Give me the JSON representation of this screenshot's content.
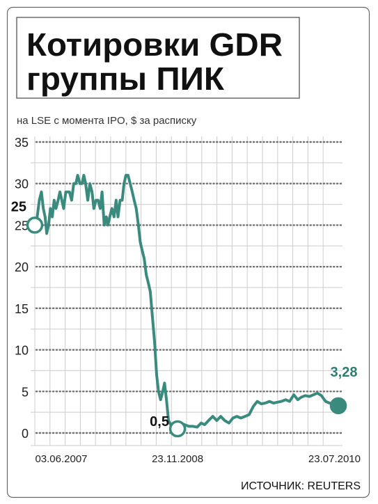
{
  "title_line1": "Котировки GDR",
  "title_line2": "группы ПИК",
  "subtitle": "на LSE с момента IPO, $ за расписку",
  "source": "ИСТОЧНИК: REUTERS",
  "colors": {
    "line": "#3a8a7e",
    "grid_minor": "#cccccc",
    "grid_major": "#6f6f6f",
    "end_label": "#2e7d72",
    "frame": "#666666"
  },
  "chart_data": {
    "type": "line",
    "title": "Котировки GDR группы ПИК",
    "subtitle": "на LSE с момента IPO, $ за расписку",
    "xlabel": "",
    "ylabel": "",
    "ylim": [
      0,
      35
    ],
    "yticks": [
      "0",
      "5",
      "10",
      "15",
      "20",
      "25",
      "30",
      "35"
    ],
    "xticks": [
      "03.06.2007",
      "23.11.2008",
      "23.07.2010"
    ],
    "grid": true,
    "annotations": [
      {
        "label": "25",
        "x": "03.06.2007",
        "y": 25
      },
      {
        "label": "0,5",
        "x": "23.11.2008",
        "y": 0.5
      },
      {
        "label": "3,28",
        "x": "23.07.2010",
        "y": 3.28
      }
    ],
    "series": [
      {
        "x": [
          "2007-06-03",
          "2007-06-12",
          "2007-06-20",
          "2007-06-28",
          "2007-07-05",
          "2007-07-12",
          "2007-07-18",
          "2007-07-25",
          "2007-08-01",
          "2007-08-08",
          "2007-08-15",
          "2007-08-22",
          "2007-08-30",
          "2007-09-06",
          "2007-09-13",
          "2007-09-20",
          "2007-09-28",
          "2007-10-05",
          "2007-10-12",
          "2007-10-20",
          "2007-10-28",
          "2007-11-05",
          "2007-11-12",
          "2007-11-20",
          "2007-11-28",
          "2007-12-05",
          "2007-12-12",
          "2007-12-20",
          "2007-12-28",
          "2008-01-05",
          "2008-01-12",
          "2008-01-20",
          "2008-01-28",
          "2008-02-05",
          "2008-02-12",
          "2008-02-20",
          "2008-02-28",
          "2008-03-05",
          "2008-03-12",
          "2008-03-20",
          "2008-03-28",
          "2008-04-05",
          "2008-04-12",
          "2008-04-20",
          "2008-04-28",
          "2008-05-05",
          "2008-05-12",
          "2008-05-20",
          "2008-05-28",
          "2008-06-05",
          "2008-06-12",
          "2008-06-20",
          "2008-06-28",
          "2008-07-05",
          "2008-07-12",
          "2008-07-20",
          "2008-07-28",
          "2008-08-05",
          "2008-08-12",
          "2008-08-20",
          "2008-08-28",
          "2008-09-05",
          "2008-09-12",
          "2008-09-20",
          "2008-09-28",
          "2008-10-05",
          "2008-10-12",
          "2008-10-20",
          "2008-10-28",
          "2008-11-05",
          "2008-11-12",
          "2008-11-23",
          "2008-12-05",
          "2008-12-20",
          "2009-01-05",
          "2009-01-20",
          "2009-02-05",
          "2009-02-20",
          "2009-03-05",
          "2009-03-20",
          "2009-04-05",
          "2009-04-20",
          "2009-05-05",
          "2009-05-20",
          "2009-06-05",
          "2009-06-20",
          "2009-07-05",
          "2009-07-20",
          "2009-08-05",
          "2009-08-20",
          "2009-09-05",
          "2009-09-20",
          "2009-10-05",
          "2009-10-20",
          "2009-11-05",
          "2009-11-20",
          "2009-12-05",
          "2009-12-20",
          "2010-01-05",
          "2010-01-20",
          "2010-02-05",
          "2010-02-20",
          "2010-03-05",
          "2010-03-20",
          "2010-04-05",
          "2010-04-20",
          "2010-05-05",
          "2010-05-20",
          "2010-06-05",
          "2010-06-20",
          "2010-07-05",
          "2010-07-23"
        ],
        "y": [
          25,
          26,
          28,
          29,
          27,
          26,
          24,
          25,
          27,
          26,
          28,
          27,
          28,
          29,
          28,
          27,
          29,
          29,
          29,
          28,
          30,
          30,
          31,
          30,
          30,
          31,
          30,
          28,
          30,
          29,
          27,
          28,
          28,
          27,
          29,
          25,
          26,
          25,
          26,
          27,
          26,
          28,
          26,
          28,
          28,
          30,
          31,
          31,
          30,
          29,
          28,
          27,
          25,
          23,
          22,
          21,
          19,
          18,
          17,
          14,
          11,
          7,
          5,
          4,
          5,
          6,
          4,
          1.5,
          1,
          0.7,
          0.6,
          0.5,
          1.2,
          1.0,
          0.8,
          0.8,
          0.7,
          1.2,
          1.0,
          1.5,
          2.0,
          1.5,
          2.0,
          1.5,
          1.2,
          1.8,
          2.0,
          1.8,
          2.0,
          2.2,
          3.2,
          3.8,
          3.5,
          3.6,
          3.8,
          3.6,
          3.7,
          3.8,
          4.0,
          3.8,
          4.6,
          4.0,
          4.3,
          4.5,
          4.4,
          4.6,
          4.8,
          4.5,
          3.8,
          3.6,
          3.4,
          3.28
        ]
      }
    ]
  }
}
